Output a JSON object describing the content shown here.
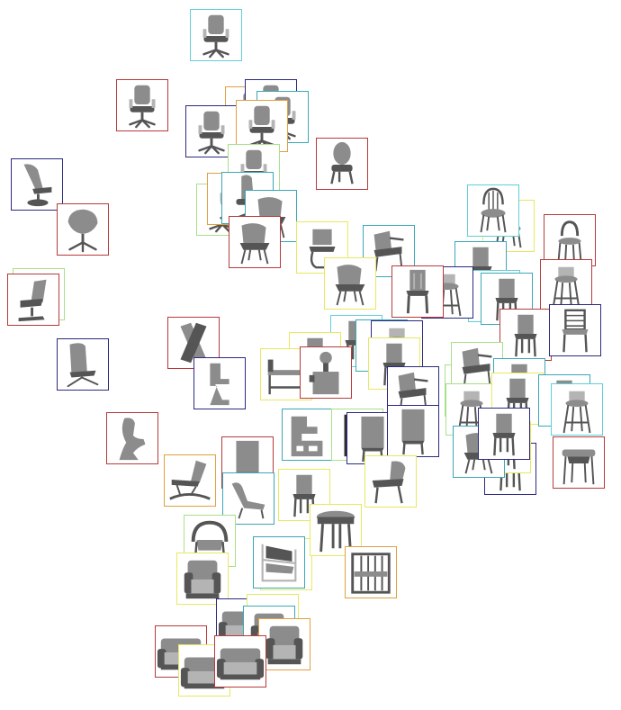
{
  "colors": {
    "red": "#b83a3a",
    "navy": "#2a2a80",
    "cyan": "#5fd0d8",
    "yellow": "#e8e860",
    "green": "#a8e088",
    "orange": "#e0a040",
    "teal": "#3aa8b8",
    "chair_fill": "#8c8c8c",
    "chair_dark": "#555555",
    "chair_light": "#b4b4b4"
  },
  "items": [
    {
      "shape": "office-chair",
      "frame": "cyan"
    },
    {
      "shape": "office-chair",
      "frame": "red"
    },
    {
      "shape": "office-chair",
      "frame": "navy"
    },
    {
      "shape": "office-chair",
      "frame": "orange"
    },
    {
      "shape": "office-chair",
      "frame": "teal"
    },
    {
      "shape": "office-chair",
      "frame": "navy"
    },
    {
      "shape": "office-chair",
      "frame": "orange"
    },
    {
      "shape": "medallion-chair",
      "frame": "red"
    },
    {
      "shape": "recliner-swivel",
      "frame": "navy"
    },
    {
      "shape": "egg-swivel",
      "frame": "red"
    },
    {
      "shape": "office-chair",
      "frame": "green"
    },
    {
      "shape": "office-chair",
      "frame": "green"
    },
    {
      "shape": "office-chair",
      "frame": "orange"
    },
    {
      "shape": "highback-office",
      "frame": "teal"
    },
    {
      "shape": "shell-chair",
      "frame": "teal"
    },
    {
      "shape": "shell-chair",
      "frame": "red"
    },
    {
      "shape": "lounge-pedestal",
      "frame": "green"
    },
    {
      "shape": "lounge-pedestal",
      "frame": "red"
    },
    {
      "shape": "cantilever",
      "frame": "yellow"
    },
    {
      "shape": "armchair-metal",
      "frame": "teal"
    },
    {
      "shape": "shell-chair",
      "frame": "yellow"
    },
    {
      "shape": "windsor",
      "frame": "cyan"
    },
    {
      "shape": "windsor",
      "frame": "yellow"
    },
    {
      "shape": "bentwood",
      "frame": "red"
    },
    {
      "shape": "bar-stool",
      "frame": "red"
    },
    {
      "shape": "side-chair",
      "frame": "teal"
    },
    {
      "shape": "side-chair",
      "frame": "cyan"
    },
    {
      "shape": "carved-chair",
      "frame": "red"
    },
    {
      "shape": "bar-stool",
      "frame": "navy"
    },
    {
      "shape": "side-chair",
      "frame": "teal"
    },
    {
      "shape": "side-chair",
      "frame": "red"
    },
    {
      "shape": "spindle-chair",
      "frame": "navy"
    },
    {
      "shape": "highback-lounge",
      "frame": "navy"
    },
    {
      "shape": "x-chair",
      "frame": "red"
    },
    {
      "shape": "zigzag",
      "frame": "navy"
    },
    {
      "shape": "side-chair",
      "frame": "cyan"
    },
    {
      "shape": "side-chair",
      "frame": "teal"
    },
    {
      "shape": "bar-stool",
      "frame": "navy"
    },
    {
      "shape": "side-chair",
      "frame": "yellow"
    },
    {
      "shape": "side-chair",
      "frame": "yellow"
    },
    {
      "shape": "bench",
      "frame": "yellow"
    },
    {
      "shape": "sculpture",
      "frame": "red"
    },
    {
      "shape": "armchair-metal",
      "frame": "navy"
    },
    {
      "shape": "side-chair",
      "frame": "green"
    },
    {
      "shape": "armchair-metal",
      "frame": "green"
    },
    {
      "shape": "side-chair",
      "frame": "teal"
    },
    {
      "shape": "bar-stool",
      "frame": "green"
    },
    {
      "shape": "side-chair",
      "frame": "yellow"
    },
    {
      "shape": "side-chair",
      "frame": "teal"
    },
    {
      "shape": "bar-stool",
      "frame": "cyan"
    },
    {
      "shape": "side-chair",
      "frame": "navy"
    },
    {
      "shape": "side-chair",
      "frame": "yellow"
    },
    {
      "shape": "stool-table",
      "frame": "red"
    },
    {
      "shape": "panton",
      "frame": "red"
    },
    {
      "shape": "squiggle",
      "frame": "teal"
    },
    {
      "shape": "block-chair",
      "frame": "green"
    },
    {
      "shape": "tall-back",
      "frame": "navy"
    },
    {
      "shape": "tall-back",
      "frame": "navy"
    },
    {
      "shape": "shell-chair",
      "frame": "teal"
    },
    {
      "shape": "side-chair",
      "frame": "navy"
    },
    {
      "shape": "wood-lounge",
      "frame": "yellow"
    },
    {
      "shape": "rocking-lounge",
      "frame": "orange"
    },
    {
      "shape": "tall-back",
      "frame": "red"
    },
    {
      "shape": "chaise",
      "frame": "teal"
    },
    {
      "shape": "side-chair",
      "frame": "yellow"
    },
    {
      "shape": "club-chair",
      "frame": "yellow"
    },
    {
      "shape": "round-table",
      "frame": "yellow"
    },
    {
      "shape": "armchair-round",
      "frame": "green"
    },
    {
      "shape": "wassily",
      "frame": "teal"
    },
    {
      "shape": "club-chair",
      "frame": "yellow"
    },
    {
      "shape": "slat-armchair",
      "frame": "orange"
    },
    {
      "shape": "sofa",
      "frame": "navy"
    },
    {
      "shape": "sofa",
      "frame": "yellow"
    },
    {
      "shape": "club-chair",
      "frame": "teal"
    },
    {
      "shape": "club-chair",
      "frame": "orange"
    },
    {
      "shape": "sofa",
      "frame": "red"
    },
    {
      "shape": "sofa",
      "frame": "yellow"
    },
    {
      "shape": "sofa",
      "frame": "red"
    }
  ]
}
